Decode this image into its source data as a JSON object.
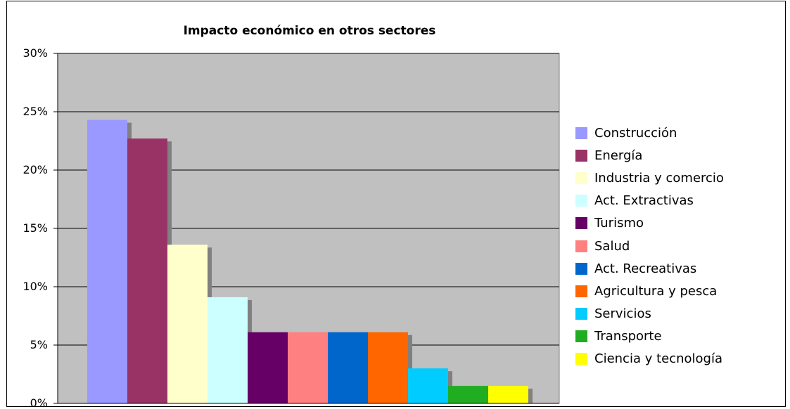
{
  "chart_data": {
    "type": "bar",
    "title": "Impacto económico en otros sectores",
    "xlabel": "",
    "ylabel": "",
    "ylim": [
      0,
      30
    ],
    "yticks": [
      "0%",
      "5%",
      "10%",
      "15%",
      "20%",
      "25%",
      "30%"
    ],
    "grid": true,
    "legend_position": "right",
    "plot_background": "#c0c0c0",
    "shadow_color": "#808080",
    "series": [
      {
        "name": "Construcción",
        "value": 24.3,
        "color": "#9999ff"
      },
      {
        "name": "Energía",
        "value": 22.7,
        "color": "#993366"
      },
      {
        "name": "Industria y comercio",
        "value": 13.6,
        "color": "#ffffcc"
      },
      {
        "name": "Act. Extractivas",
        "value": 9.1,
        "color": "#ccffff"
      },
      {
        "name": "Turismo",
        "value": 6.1,
        "color": "#660066"
      },
      {
        "name": "Salud",
        "value": 6.1,
        "color": "#ff8080"
      },
      {
        "name": "Act. Recreativas",
        "value": 6.1,
        "color": "#0066cc"
      },
      {
        "name": "Agricultura y pesca",
        "value": 6.1,
        "color": "#ff6600"
      },
      {
        "name": "Servicios",
        "value": 3.0,
        "color": "#00ccff"
      },
      {
        "name": "Transporte",
        "value": 1.5,
        "color": "#21ad21"
      },
      {
        "name": "Ciencia y tecnología",
        "value": 1.5,
        "color": "#ffff00"
      }
    ]
  }
}
